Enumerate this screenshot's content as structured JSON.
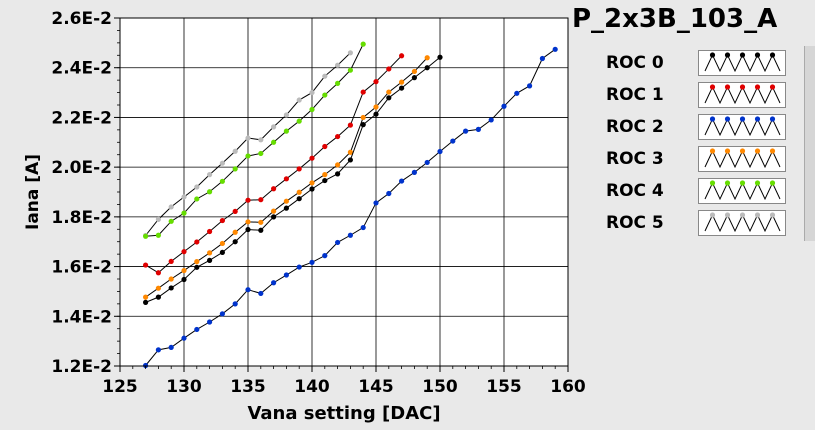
{
  "chart_data": {
    "type": "line",
    "title": "P_2x3B_103_A",
    "xlabel": "Vana setting [DAC]",
    "ylabel": "Iana [A]",
    "xlim": [
      125,
      160
    ],
    "ylim": [
      0.012,
      0.026
    ],
    "xticks": [
      "125",
      "130",
      "135",
      "140",
      "145",
      "150",
      "155",
      "160"
    ],
    "yticks": [
      "1.2E-2",
      "1.4E-2",
      "1.6E-2",
      "1.8E-2",
      "2.0E-2",
      "2.2E-2",
      "2.4E-2",
      "2.6E-2"
    ],
    "grid": true,
    "legend_position": "right",
    "series": [
      {
        "name": "ROC 0",
        "color": "#000000",
        "x": [
          127,
          128,
          129,
          130,
          131,
          132,
          133,
          134,
          135,
          136,
          137,
          138,
          139,
          140,
          141,
          142,
          143,
          144,
          145,
          146,
          147,
          148,
          149,
          150
        ],
        "y": [
          0.01456,
          0.01477,
          0.01514,
          0.01548,
          0.01597,
          0.01625,
          0.01657,
          0.017,
          0.01749,
          0.01746,
          0.018,
          0.01835,
          0.01873,
          0.01912,
          0.01946,
          0.01973,
          0.02029,
          0.02171,
          0.02213,
          0.02279,
          0.02318,
          0.0236,
          0.024,
          0.02442
        ]
      },
      {
        "name": "ROC 1",
        "color": "#e00000",
        "x": [
          127,
          128,
          129,
          130,
          131,
          132,
          133,
          134,
          135,
          136,
          137,
          138,
          139,
          140,
          141,
          142,
          143,
          144,
          145,
          146,
          147
        ],
        "y": [
          0.01606,
          0.01575,
          0.01621,
          0.0166,
          0.01699,
          0.01741,
          0.01785,
          0.01822,
          0.01867,
          0.01869,
          0.01913,
          0.01953,
          0.01993,
          0.02036,
          0.02083,
          0.02123,
          0.02169,
          0.02302,
          0.02344,
          0.02395,
          0.02448
        ]
      },
      {
        "name": "ROC 2",
        "color": "#0033cc",
        "x": [
          127,
          128,
          129,
          130,
          131,
          132,
          133,
          134,
          135,
          136,
          137,
          138,
          139,
          140,
          141,
          142,
          143,
          144,
          145,
          146,
          147,
          148,
          149,
          150,
          151,
          152,
          153,
          154,
          155,
          156,
          157,
          158,
          159
        ],
        "y": [
          0.01202,
          0.01265,
          0.01275,
          0.01312,
          0.01347,
          0.01377,
          0.0141,
          0.0145,
          0.01507,
          0.01492,
          0.01535,
          0.01566,
          0.01598,
          0.01617,
          0.01644,
          0.01697,
          0.01726,
          0.01757,
          0.01856,
          0.01894,
          0.01944,
          0.01979,
          0.02019,
          0.02063,
          0.02105,
          0.02145,
          0.02152,
          0.0219,
          0.02245,
          0.02297,
          0.02327,
          0.02437,
          0.02474
        ]
      },
      {
        "name": "ROC 3",
        "color": "#ff8800",
        "x": [
          127,
          128,
          129,
          130,
          131,
          132,
          133,
          134,
          135,
          136,
          137,
          138,
          139,
          140,
          141,
          142,
          143,
          144,
          145,
          146,
          147,
          148,
          149
        ],
        "y": [
          0.01477,
          0.01513,
          0.0155,
          0.01584,
          0.0162,
          0.01655,
          0.01693,
          0.01738,
          0.0178,
          0.01778,
          0.01823,
          0.01863,
          0.01899,
          0.01937,
          0.0197,
          0.02009,
          0.0206,
          0.022,
          0.02242,
          0.02302,
          0.02342,
          0.02385,
          0.0244
        ]
      },
      {
        "name": "ROC 4",
        "color": "#66dd00",
        "x": [
          127,
          128,
          129,
          130,
          131,
          132,
          133,
          134,
          135,
          136,
          137,
          138,
          139,
          140,
          141,
          142,
          143,
          144
        ],
        "y": [
          0.01722,
          0.01726,
          0.01782,
          0.01815,
          0.01872,
          0.01901,
          0.01943,
          0.01993,
          0.02045,
          0.02055,
          0.021,
          0.02145,
          0.02185,
          0.02232,
          0.0229,
          0.02337,
          0.0239,
          0.02495
        ]
      },
      {
        "name": "ROC 5",
        "color": "#bbbbbb",
        "x": [
          127,
          128,
          129,
          130,
          131,
          132,
          133,
          134,
          135,
          136,
          137,
          138,
          139,
          140,
          141,
          142,
          143
        ],
        "y": [
          0.01725,
          0.0179,
          0.0184,
          0.0188,
          0.0192,
          0.0197,
          0.02016,
          0.02064,
          0.02117,
          0.0211,
          0.02162,
          0.0221,
          0.0227,
          0.023,
          0.02366,
          0.0241,
          0.0246
        ]
      }
    ]
  }
}
